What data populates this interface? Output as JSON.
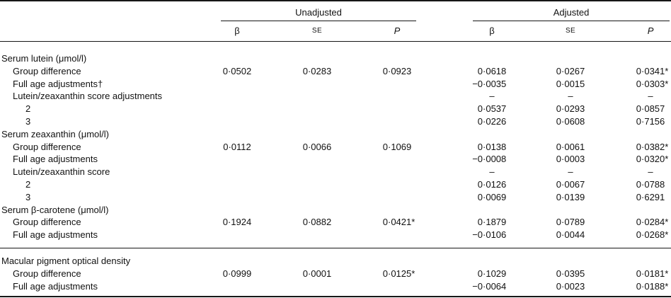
{
  "table": {
    "dash": "–",
    "groups": [
      {
        "label": "Unadjusted",
        "columns": [
          {
            "label": "β"
          },
          {
            "label": "SE"
          },
          {
            "label": "P"
          }
        ]
      },
      {
        "label": "Adjusted",
        "columns": [
          {
            "label": "β"
          },
          {
            "label": "SE"
          },
          {
            "label": "P"
          }
        ]
      }
    ],
    "rows": [
      {
        "label": "Serum lutein (μmol/l)",
        "indent": 0,
        "cells": [
          "",
          "",
          "",
          "",
          "",
          ""
        ]
      },
      {
        "label": "Group difference",
        "indent": 1,
        "cells": [
          "0·0502",
          "0·0283",
          "0·0923",
          "0·0618",
          "0·0267",
          "0·0341*"
        ]
      },
      {
        "label": "Full age adjustments†",
        "indent": 1,
        "cells": [
          "",
          "",
          "",
          "−0·0035",
          "0·0015",
          "0·0303*"
        ]
      },
      {
        "label": "Lutein/zeaxanthin score adjustments",
        "indent": 1,
        "cells": [
          "",
          "",
          "",
          "–",
          "–",
          "–"
        ]
      },
      {
        "label": "2",
        "indent": 2,
        "cells": [
          "",
          "",
          "",
          "0·0537",
          "0·0293",
          "0·0857"
        ]
      },
      {
        "label": "3",
        "indent": 2,
        "cells": [
          "",
          "",
          "",
          "0·0226",
          "0·0608",
          "0·7156"
        ]
      },
      {
        "label": "Serum zeaxanthin (μmol/l)",
        "indent": 0,
        "cells": [
          "",
          "",
          "",
          "",
          "",
          ""
        ]
      },
      {
        "label": "Group difference",
        "indent": 1,
        "cells": [
          "0·0112",
          "0·0066",
          "0·1069",
          "0·0138",
          "0·0061",
          "0·0382*"
        ]
      },
      {
        "label": "Full age adjustments",
        "indent": 1,
        "cells": [
          "",
          "",
          "",
          "−0·0008",
          "0·0003",
          "0·0320*"
        ]
      },
      {
        "label": "Lutein/zeaxanthin score",
        "indent": 1,
        "cells": [
          "",
          "",
          "",
          "–",
          "–",
          "–"
        ]
      },
      {
        "label": "2",
        "indent": 2,
        "cells": [
          "",
          "",
          "",
          "0·0126",
          "0·0067",
          "0·0788"
        ]
      },
      {
        "label": "3",
        "indent": 2,
        "cells": [
          "",
          "",
          "",
          "0·0069",
          "0·0139",
          "0·6291"
        ]
      },
      {
        "label": "Serum β-carotene (μmol/l)",
        "indent": 0,
        "cells": [
          "",
          "",
          "",
          "",
          "",
          ""
        ]
      },
      {
        "label": "Group difference",
        "indent": 1,
        "cells": [
          "0·1924",
          "0·0882",
          "0·0421*",
          "0·1879",
          "0·0789",
          "0·0284*"
        ]
      },
      {
        "label": "Full age adjustments",
        "indent": 1,
        "cells": [
          "",
          "",
          "",
          "−0·0106",
          "0·0044",
          "0·0268*"
        ],
        "rule_after": true
      },
      {
        "label": "Macular pigment optical density",
        "indent": 0,
        "cells": [
          "",
          "",
          "",
          "",
          "",
          ""
        ],
        "pad_top": true
      },
      {
        "label": "Group difference",
        "indent": 1,
        "cells": [
          "0·0999",
          "0·0001",
          "0·0125*",
          "0·1029",
          "0·0395",
          "0·0181*"
        ]
      },
      {
        "label": "Full age adjustments",
        "indent": 1,
        "cells": [
          "",
          "",
          "",
          "−0·0064",
          "0·0023",
          "0·0188*"
        ]
      }
    ]
  }
}
